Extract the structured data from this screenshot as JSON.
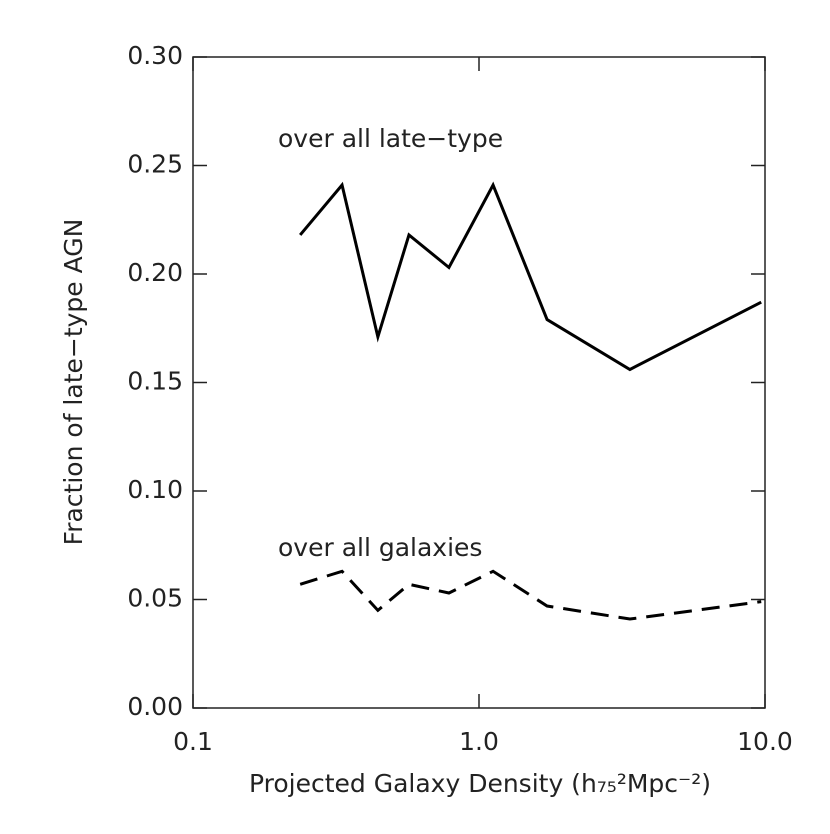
{
  "chart_data": {
    "type": "line",
    "xlabel": "Projected Galaxy Density (h₇₅²Mpc⁻²)",
    "ylabel": "Fraction of late−type AGN",
    "annotations": [
      "over all late−type",
      "over all galaxies"
    ],
    "x": [
      0.237,
      0.332,
      0.443,
      0.569,
      0.785,
      1.12,
      1.73,
      3.37,
      9.7
    ],
    "series": [
      {
        "color": "#000000",
        "dash": "solid",
        "values": [
          0.218,
          0.241,
          0.171,
          0.218,
          0.203,
          0.241,
          0.179,
          0.156,
          0.187
        ]
      },
      {
        "color": "#000000",
        "dash": "dashed",
        "values": [
          0.057,
          0.063,
          0.045,
          0.057,
          0.053,
          0.063,
          0.047,
          0.041,
          0.049
        ]
      }
    ],
    "xscale": "log",
    "xlim": [
      0.1,
      10
    ],
    "xticks": [
      {
        "value": 0.1,
        "label": "0.1"
      },
      {
        "value": 1,
        "label": "1.0"
      },
      {
        "value": 10,
        "label": "10.0"
      }
    ],
    "ylim": [
      0,
      0.3
    ],
    "yticks": [
      {
        "value": 0,
        "label": "0.00"
      },
      {
        "value": 0.05,
        "label": "0.05"
      },
      {
        "value": 0.1,
        "label": "0.10"
      },
      {
        "value": 0.15,
        "label": "0.15"
      },
      {
        "value": 0.2,
        "label": "0.20"
      },
      {
        "value": 0.25,
        "label": "0.25"
      },
      {
        "value": 0.3,
        "label": "0.30"
      }
    ]
  }
}
